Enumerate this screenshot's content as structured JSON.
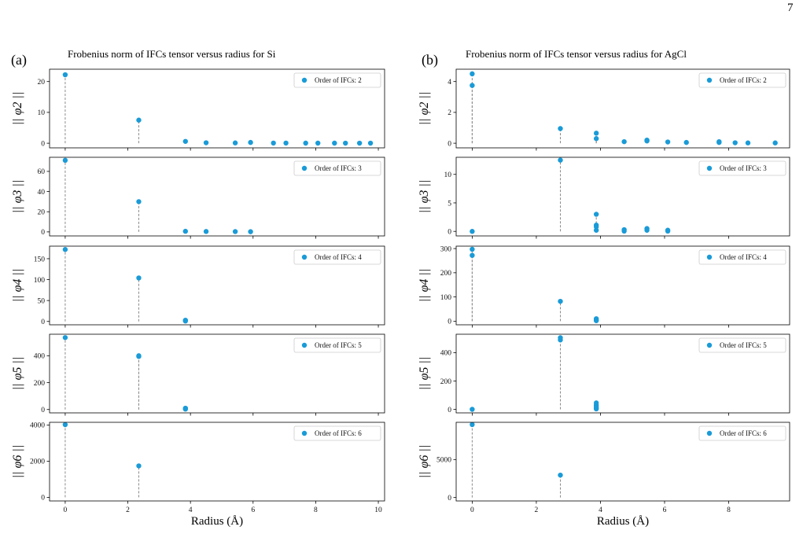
{
  "page_number": "7",
  "colors": {
    "marker": "#1a9bd7",
    "stem": "#8a8a8a",
    "axis": "#000000",
    "legend_border": "#cccccc"
  },
  "chart_data": [
    {
      "id": "a",
      "panel_label": "(a)",
      "title": "Frobenius norm of IFCs tensor versus radius for Si",
      "xlabel": "Radius (Å)",
      "xlim": [
        -0.5,
        10.2
      ],
      "xticks": [
        0,
        2,
        4,
        6,
        8,
        10
      ],
      "subplots": [
        {
          "type": "scatter",
          "ylabel": "|| φ2 ||",
          "ylim": [
            -1.5,
            24
          ],
          "yticks": [
            0,
            10,
            20
          ],
          "legend": "Order of IFCs: 2",
          "points": [
            [
              0,
              22.2
            ],
            [
              2.35,
              7.5
            ],
            [
              3.84,
              0.6
            ],
            [
              4.5,
              0.15
            ],
            [
              5.43,
              0.1
            ],
            [
              5.92,
              0.25
            ],
            [
              6.65,
              0.05
            ],
            [
              7.05,
              0.05
            ],
            [
              7.68,
              0.03
            ],
            [
              8.07,
              0.03
            ],
            [
              8.6,
              0.03
            ],
            [
              8.95,
              0.02
            ],
            [
              9.4,
              0.02
            ],
            [
              9.75,
              0.02
            ]
          ]
        },
        {
          "type": "scatter",
          "ylabel": "|| φ3 ||",
          "ylim": [
            -4,
            74
          ],
          "yticks": [
            0,
            20,
            40,
            60
          ],
          "legend": "Order of IFCs: 3",
          "points": [
            [
              0,
              71
            ],
            [
              2.35,
              30
            ],
            [
              3.84,
              0.6
            ],
            [
              4.5,
              0.4
            ],
            [
              5.43,
              0.3
            ],
            [
              5.92,
              0.2
            ]
          ]
        },
        {
          "type": "scatter",
          "ylabel": "|| φ4 ||",
          "ylim": [
            -8,
            180
          ],
          "yticks": [
            0,
            50,
            100,
            150
          ],
          "legend": "Order of IFCs: 4",
          "points": [
            [
              0,
              172
            ],
            [
              2.35,
              104
            ],
            [
              3.84,
              3
            ],
            [
              3.84,
              1
            ]
          ]
        },
        {
          "type": "scatter",
          "ylabel": "|| φ5 ||",
          "ylim": [
            -25,
            560
          ],
          "yticks": [
            0,
            200,
            400
          ],
          "legend": "Order of IFCs: 5",
          "points": [
            [
              0,
              535
            ],
            [
              2.35,
              400
            ],
            [
              2.35,
              395
            ],
            [
              3.84,
              10
            ],
            [
              3.84,
              3
            ]
          ]
        },
        {
          "type": "scatter",
          "ylabel": "|| φ6 ||",
          "ylim": [
            -200,
            4150
          ],
          "yticks": [
            0,
            2000,
            4000
          ],
          "legend": "Order of IFCs: 6",
          "points": [
            [
              0,
              4020
            ],
            [
              2.35,
              1740
            ]
          ]
        }
      ]
    },
    {
      "id": "b",
      "panel_label": "(b)",
      "title": "Frobenius norm of IFCs tensor versus radius for AgCl",
      "xlabel": "Radius (Å)",
      "xlim": [
        -0.5,
        9.9
      ],
      "xticks": [
        0,
        2,
        4,
        6,
        8
      ],
      "subplots": [
        {
          "type": "scatter",
          "ylabel": "|| φ2 ||",
          "ylim": [
            -0.3,
            4.8
          ],
          "yticks": [
            0,
            2,
            4
          ],
          "legend": "Order of IFCs: 2",
          "points": [
            [
              0,
              4.5
            ],
            [
              0,
              3.75
            ],
            [
              2.75,
              0.95
            ],
            [
              3.87,
              0.65
            ],
            [
              3.87,
              0.3
            ],
            [
              4.74,
              0.1
            ],
            [
              5.45,
              0.15
            ],
            [
              5.45,
              0.2
            ],
            [
              6.1,
              0.08
            ],
            [
              6.68,
              0.05
            ],
            [
              7.7,
              0.05
            ],
            [
              7.7,
              0.1
            ],
            [
              8.2,
              0.03
            ],
            [
              8.6,
              0.02
            ],
            [
              9.45,
              0.02
            ]
          ]
        },
        {
          "type": "scatter",
          "ylabel": "|| φ3 ||",
          "ylim": [
            -0.8,
            13
          ],
          "yticks": [
            0,
            5,
            10
          ],
          "legend": "Order of IFCs: 3",
          "points": [
            [
              0,
              0
            ],
            [
              2.75,
              12.5
            ],
            [
              3.87,
              3.0
            ],
            [
              3.87,
              1.1
            ],
            [
              3.87,
              0.8
            ],
            [
              3.87,
              0.2
            ],
            [
              4.74,
              0.3
            ],
            [
              4.74,
              0.05
            ],
            [
              5.45,
              0.5
            ],
            [
              5.45,
              0.2
            ],
            [
              6.1,
              0.2
            ],
            [
              6.1,
              0.05
            ]
          ]
        },
        {
          "type": "scatter",
          "ylabel": "|| φ4 ||",
          "ylim": [
            -15,
            310
          ],
          "yticks": [
            0,
            100,
            200,
            300
          ],
          "legend": "Order of IFCs: 4",
          "points": [
            [
              0,
              297
            ],
            [
              0,
              272
            ],
            [
              2.75,
              82
            ],
            [
              3.87,
              10
            ],
            [
              3.87,
              5
            ],
            [
              3.87,
              2
            ]
          ]
        },
        {
          "type": "scatter",
          "ylabel": "|| φ5 ||",
          "ylim": [
            -25,
            530
          ],
          "yticks": [
            0,
            200,
            400
          ],
          "legend": "Order of IFCs: 5",
          "points": [
            [
              0,
              0
            ],
            [
              2.75,
              505
            ],
            [
              2.75,
              490
            ],
            [
              3.87,
              45
            ],
            [
              3.87,
              30
            ],
            [
              3.87,
              20
            ],
            [
              3.87,
              10
            ],
            [
              3.87,
              3
            ]
          ]
        },
        {
          "type": "scatter",
          "ylabel": "|| φ6 ||",
          "ylim": [
            -450,
            9900
          ],
          "yticks": [
            0,
            5000
          ],
          "legend": "Order of IFCs: 6",
          "points": [
            [
              0,
              9600
            ],
            [
              2.75,
              2950
            ]
          ]
        }
      ]
    }
  ]
}
